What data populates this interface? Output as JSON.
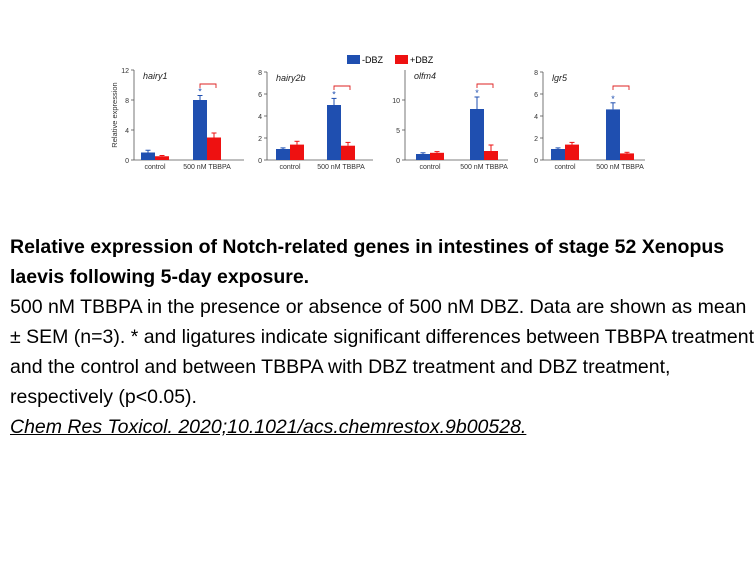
{
  "legend": {
    "items": [
      {
        "label": "-DBZ",
        "color": "#1f4fb0"
      },
      {
        "label": "+DBZ",
        "color": "#ee1111"
      }
    ]
  },
  "chart_data": [
    {
      "type": "bar",
      "gene": "hairy1",
      "ylabel": "Relative expression",
      "ylim": [
        0,
        12
      ],
      "yticks": [
        0,
        4,
        8,
        12
      ],
      "yticklabels": [
        "0",
        "4",
        "8",
        "12"
      ],
      "categories": [
        "control",
        "500 nM TBBPA"
      ],
      "series": [
        {
          "name": "-DBZ",
          "values": [
            1.0,
            8.0
          ],
          "errors": [
            0.3,
            0.6
          ]
        },
        {
          "name": "+DBZ",
          "values": [
            0.5,
            3.0
          ],
          "errors": [
            0.1,
            0.6
          ]
        }
      ],
      "significance": {
        "asterisk_on": "500 nM TBBPA",
        "ligature_on": "500 nM TBBPA"
      }
    },
    {
      "type": "bar",
      "gene": "hairy2b",
      "ylabel": "",
      "ylim": [
        0,
        8
      ],
      "yticks": [
        0,
        2,
        4,
        6,
        8
      ],
      "yticklabels": [
        "0",
        "2",
        "4",
        "6",
        "8"
      ],
      "categories": [
        "control",
        "500 nM TBBPA"
      ],
      "series": [
        {
          "name": "-DBZ",
          "values": [
            1.0,
            5.0
          ],
          "errors": [
            0.1,
            0.6
          ]
        },
        {
          "name": "+DBZ",
          "values": [
            1.4,
            1.3
          ],
          "errors": [
            0.3,
            0.3
          ]
        }
      ],
      "significance": {
        "asterisk_on": "500 nM TBBPA",
        "ligature_on": "500 nM TBBPA"
      }
    },
    {
      "type": "bar",
      "gene": "olfm4",
      "ylabel": "",
      "ylim": [
        0,
        15
      ],
      "yticks": [
        0,
        5,
        10
      ],
      "yticklabels": [
        "0",
        "5",
        "10"
      ],
      "categories": [
        "control",
        "500 nM TBBPA"
      ],
      "series": [
        {
          "name": "-DBZ",
          "values": [
            1.0,
            8.5
          ],
          "errors": [
            0.2,
            2.0
          ]
        },
        {
          "name": "+DBZ",
          "values": [
            1.2,
            1.5
          ],
          "errors": [
            0.2,
            1.0
          ]
        }
      ],
      "significance": {
        "asterisk_on": "500 nM TBBPA",
        "ligature_on": "500 nM TBBPA"
      }
    },
    {
      "type": "bar",
      "gene": "lgr5",
      "ylabel": "",
      "ylim": [
        0,
        8
      ],
      "yticks": [
        0,
        2,
        4,
        6,
        8
      ],
      "yticklabels": [
        "0",
        "2",
        "4",
        "6",
        "8"
      ],
      "categories": [
        "control",
        "500 nM TBBPA"
      ],
      "series": [
        {
          "name": "-DBZ",
          "values": [
            1.0,
            4.6
          ],
          "errors": [
            0.1,
            0.6
          ]
        },
        {
          "name": "+DBZ",
          "values": [
            1.4,
            0.6
          ],
          "errors": [
            0.2,
            0.1
          ]
        }
      ],
      "significance": {
        "asterisk_on": "500 nM TBBPA",
        "ligature_on": "500 nM TBBPA"
      }
    }
  ],
  "caption": {
    "title": "Relative expression of Notch-related genes in intestines of stage 52 Xenopus laevis following 5-day exposure.",
    "description": "500 nM TBBPA in the presence or absence of 500 nM DBZ. Data are shown as mean ± SEM (n=3). * and ligatures indicate significant differences between TBBPA treatment and the control and between TBBPA with DBZ treatment and DBZ treatment, respectively (p<0.05).",
    "citation": "Chem Res Toxicol. 2020;10.1021/acs.chemrestox.9b00528. "
  }
}
